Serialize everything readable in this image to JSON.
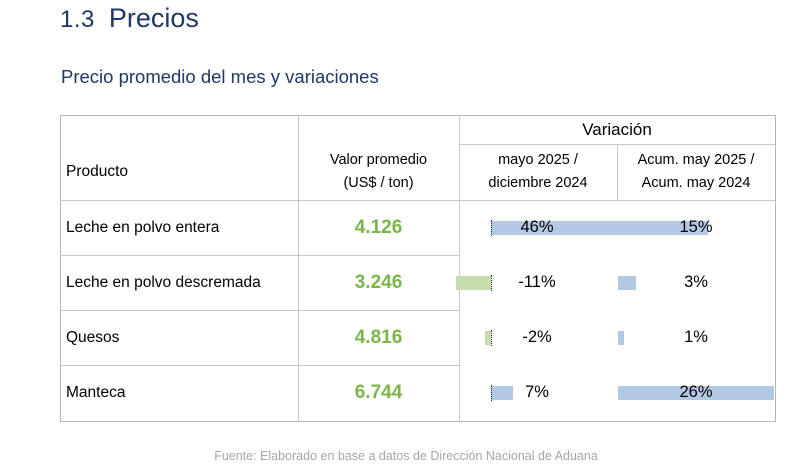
{
  "section": {
    "number": "1.3",
    "title": "Precios"
  },
  "subtitle": "Precio promedio del mes y variaciones",
  "table": {
    "header_variacion": "Variación",
    "col_producto": "Producto",
    "col_valor_line1": "Valor promedio",
    "col_valor_line2": "(US$ / ton)",
    "col_mensual_line1": "mayo 2025 /",
    "col_mensual_line2": "diciembre 2024",
    "col_acum_line1": "Acum. may 2025 /",
    "col_acum_line2": "Acum. may 2024",
    "rows": [
      {
        "producto": "Leche en polvo entera",
        "valor": "4.126",
        "var_mensual": "46%",
        "var_mensual_value": 46,
        "var_acum": "15%",
        "var_acum_value": 15
      },
      {
        "producto": "Leche en polvo descremada",
        "valor": "3.246",
        "var_mensual": "-11%",
        "var_mensual_value": -11,
        "var_acum": "3%",
        "var_acum_value": 3
      },
      {
        "producto": "Quesos",
        "valor": "4.816",
        "var_mensual": "-2%",
        "var_mensual_value": -2,
        "var_acum": "1%",
        "var_acum_value": 1
      },
      {
        "producto": "Manteca",
        "valor": "6.744",
        "var_mensual": "7%",
        "var_mensual_value": 7,
        "var_acum": "26%",
        "var_acum_value": 26
      }
    ]
  },
  "colors": {
    "heading": "#1f3864",
    "value_green": "#7ab648",
    "bar_negative": "#c7dcad",
    "bar_positive": "#b3c9e3",
    "footer": "#a6a6a6"
  },
  "footer": "Fuente: Elaborado en base a datos de Dirección Nacional de Aduana"
}
